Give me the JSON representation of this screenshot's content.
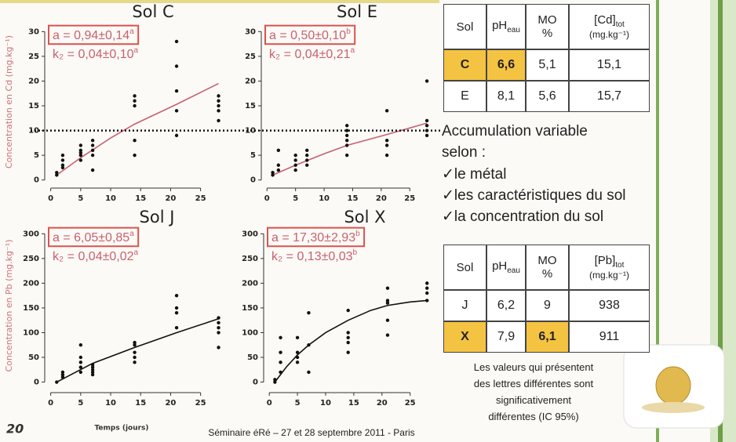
{
  "chart_data": [
    {
      "type": "scatter",
      "title": "Sol C",
      "xlim": [
        -1,
        29.5
      ],
      "ylim": [
        -1,
        31
      ],
      "xticks": [
        0,
        5,
        10,
        15,
        20,
        25
      ],
      "yticks": [
        0,
        5,
        10,
        15,
        20,
        25,
        30
      ],
      "point_color": "#111111",
      "points": {
        "x": [
          1,
          1,
          2,
          2,
          2,
          2,
          5,
          5,
          5,
          5,
          5,
          7,
          7,
          7,
          7,
          7,
          14,
          14,
          14,
          14,
          14,
          21,
          21,
          21,
          21,
          21,
          28,
          28,
          28,
          28,
          28
        ],
        "values": [
          1.5,
          1,
          3,
          4,
          5,
          2.5,
          4,
          5,
          6,
          7,
          5.5,
          5,
          6,
          7,
          8,
          2,
          5,
          8,
          15,
          16,
          17,
          9,
          14,
          18,
          23,
          28,
          12,
          14,
          15,
          16,
          17
        ]
      },
      "fit": {
        "color": "#c9606e",
        "x": [
          1,
          5,
          10,
          14,
          21,
          28
        ],
        "values": [
          1,
          4.5,
          8.5,
          11.3,
          15.3,
          19.5
        ]
      },
      "annotations": [
        {
          "text": "a = 0,94±0,14",
          "letter": "a"
        },
        {
          "text": "k₂ = 0,04±0,10",
          "letter": "a"
        }
      ],
      "reference_line": 10
    },
    {
      "type": "scatter",
      "title": "Sol E",
      "xlim": [
        -1,
        29.5
      ],
      "ylim": [
        -1,
        31
      ],
      "xticks": [
        0,
        5,
        10,
        15,
        20,
        25
      ],
      "yticks": [
        0,
        5,
        10,
        15,
        20,
        25,
        30
      ],
      "point_color": "#111111",
      "points": {
        "x": [
          1,
          1,
          2,
          2,
          2,
          5,
          5,
          5,
          5,
          7,
          7,
          7,
          7,
          14,
          14,
          14,
          14,
          14,
          14,
          21,
          21,
          21,
          21,
          28,
          28,
          28,
          28,
          28
        ],
        "values": [
          1,
          1.5,
          2,
          3,
          6,
          2,
          3,
          4,
          5,
          3,
          4,
          5,
          6,
          5,
          7,
          8,
          9,
          10,
          11,
          5,
          7,
          8,
          14,
          9,
          10,
          11,
          12,
          20
        ]
      },
      "fit": {
        "color": "#c9606e",
        "x": [
          1,
          5,
          10,
          14,
          21,
          28
        ],
        "values": [
          1,
          3,
          5.3,
          7,
          9.2,
          11.5
        ]
      },
      "annotations": [
        {
          "text": "a = 0,50±0,10",
          "letter": "b"
        },
        {
          "text": "k₂ = 0,04±0,21",
          "letter": "a"
        }
      ],
      "reference_line": 10
    },
    {
      "type": "scatter",
      "title": "Sol J",
      "xlim": [
        -1,
        29.5
      ],
      "ylim": [
        -15,
        310
      ],
      "xticks": [
        0,
        5,
        10,
        15,
        20,
        25
      ],
      "yticks": [
        0,
        50,
        100,
        150,
        200,
        250,
        300
      ],
      "point_color": "#111111",
      "points": {
        "x": [
          1,
          2,
          2,
          2,
          5,
          5,
          5,
          5,
          5,
          7,
          7,
          7,
          7,
          7,
          14,
          14,
          14,
          14,
          14,
          21,
          21,
          21,
          21,
          28,
          28,
          28,
          28,
          28
        ],
        "values": [
          0,
          10,
          15,
          20,
          20,
          30,
          40,
          50,
          75,
          15,
          20,
          25,
          30,
          35,
          40,
          50,
          60,
          75,
          80,
          110,
          140,
          150,
          175,
          70,
          100,
          110,
          120,
          130
        ]
      },
      "fit": {
        "color": "#111111",
        "x": [
          1,
          7,
          14,
          21,
          28
        ],
        "values": [
          0,
          38,
          70,
          100,
          128
        ]
      },
      "annotations": [
        {
          "text": "a = 6,05±0,85",
          "letter": "a"
        },
        {
          "text": "k₂ = 0,04±0,02",
          "letter": "a"
        }
      ]
    },
    {
      "type": "scatter",
      "title": "Sol X",
      "xlim": [
        -1,
        29.5
      ],
      "ylim": [
        -15,
        310
      ],
      "xticks": [
        0,
        5,
        10,
        15,
        20,
        25
      ],
      "yticks": [
        0,
        50,
        100,
        150,
        200,
        250,
        300
      ],
      "point_color": "#111111",
      "points": {
        "x": [
          1,
          1,
          2,
          2,
          2,
          2,
          5,
          5,
          5,
          5,
          7,
          7,
          7,
          14,
          14,
          14,
          14,
          14,
          21,
          21,
          21,
          21,
          21,
          28,
          28,
          28,
          28
        ],
        "values": [
          0,
          5,
          20,
          40,
          60,
          90,
          40,
          50,
          60,
          90,
          20,
          75,
          140,
          60,
          80,
          90,
          100,
          145,
          95,
          125,
          160,
          165,
          190,
          165,
          180,
          190,
          200
        ]
      },
      "fit": {
        "color": "#111111",
        "x": [
          1,
          3,
          5,
          7,
          10,
          14,
          18,
          21,
          25,
          28
        ],
        "values": [
          0,
          30,
          55,
          75,
          100,
          125,
          145,
          155,
          162,
          165
        ]
      },
      "annotations": [
        {
          "text": "a = 17,30±2,93",
          "letter": "b"
        },
        {
          "text": "k₂ = 0,13±0,03",
          "letter": "b"
        }
      ]
    }
  ],
  "axis_labels": {
    "y_top": "Concentration en Cd (mg.kg⁻¹)",
    "y_bottom": "Concentration en Pb (mg.kg⁻¹)",
    "x": "Temps (jours)"
  },
  "tables": [
    {
      "headers": [
        {
          "text": "Sol"
        },
        {
          "text": "pH",
          "sub": "eau"
        },
        {
          "text": "MO",
          "line2": "%"
        },
        {
          "text": "[Cd]",
          "sub": "tot",
          "line2": "(mg.kg⁻¹)"
        }
      ],
      "rows": [
        [
          "C",
          "6,6",
          "5,1",
          "15,1"
        ],
        [
          "E",
          "8,1",
          "5,6",
          "15,7"
        ]
      ],
      "highlight": [
        [
          0,
          0
        ],
        [
          0,
          1
        ]
      ],
      "highlight_color": "#f5c342"
    },
    {
      "headers": [
        {
          "text": "Sol"
        },
        {
          "text": "pH",
          "sub": "eau"
        },
        {
          "text": "MO",
          "line2": "%"
        },
        {
          "text": "[Pb]",
          "sub": "tot",
          "line2": "(mg.kg⁻¹)"
        }
      ],
      "rows": [
        [
          "J",
          "6,2",
          "9",
          "938"
        ],
        [
          "X",
          "7,9",
          "6,1",
          "911"
        ]
      ],
      "highlight": [
        [
          1,
          0
        ],
        [
          1,
          2
        ]
      ],
      "highlight_color": "#f5c342"
    }
  ],
  "text_block": {
    "lines": [
      "Accumulation variable",
      "selon :"
    ],
    "bullets": [
      "✓le métal",
      "✓les caractéristiques du sol",
      "✓la concentration du sol"
    ]
  },
  "note": [
    "Les valeurs qui présentent",
    "des lettres différentes sont",
    "significativement",
    "différentes (IC 95%)"
  ],
  "footer": {
    "page": "20",
    "text": "Séminaire éRé – 27 et 28 septembre 2011 - Paris"
  }
}
